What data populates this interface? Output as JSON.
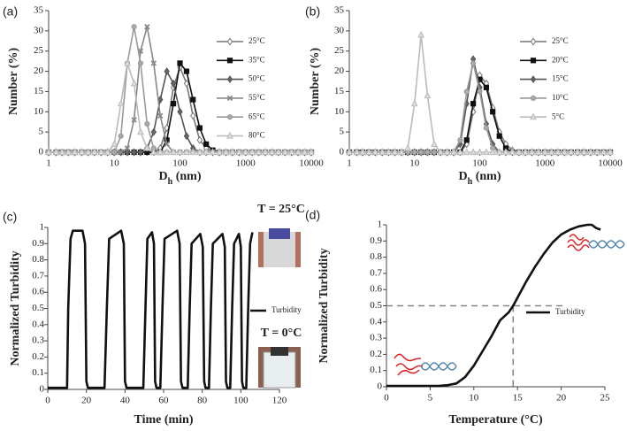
{
  "chart_data": [
    {
      "type": "line",
      "panel_label": "(a)",
      "ylabel": "Number (%)",
      "xlabel": [
        "D",
        "h",
        " (nm)"
      ],
      "xscale": "log",
      "xlim": [
        1,
        10000
      ],
      "xticks": [
        1,
        10,
        100,
        1000,
        10000
      ],
      "ylim": [
        0,
        35
      ],
      "yticks": [
        0,
        5,
        10,
        15,
        20,
        25,
        30,
        35
      ],
      "x": [
        1,
        1.3,
        1.6,
        2,
        2.5,
        3.2,
        4,
        5,
        6.3,
        7.9,
        10,
        12.6,
        15.8,
        20,
        25.1,
        31.6,
        39.8,
        50.1,
        63.1,
        79.4,
        100,
        126,
        158,
        200,
        251,
        316,
        398,
        501,
        631,
        794,
        1000,
        1259,
        1585,
        1995,
        2512,
        3162,
        3981,
        5012,
        6310,
        7943,
        10000
      ],
      "series": [
        {
          "name": "25°C",
          "color": "#777",
          "fill": "#fff",
          "marker": "diamond",
          "values": [
            0,
            0,
            0,
            0,
            0,
            0,
            0,
            0,
            0,
            0,
            0,
            0,
            0,
            0,
            0,
            0,
            0,
            1,
            6,
            16,
            21,
            17,
            9,
            3,
            1,
            0,
            0,
            0,
            0,
            0,
            0,
            0,
            0,
            0,
            0,
            0,
            0,
            0,
            0,
            0,
            0
          ]
        },
        {
          "name": "35°C",
          "color": "#111",
          "fill": "#111",
          "marker": "square",
          "values": [
            0,
            0,
            0,
            0,
            0,
            0,
            0,
            0,
            0,
            0,
            0,
            0,
            0,
            0,
            0,
            0,
            0,
            0,
            3,
            12,
            22,
            20,
            13,
            6,
            2,
            0.5,
            0,
            0,
            0,
            0,
            0,
            0,
            0,
            0,
            0,
            0,
            0,
            0,
            0,
            0,
            0
          ]
        },
        {
          "name": "50°C",
          "color": "#555",
          "fill": "#666",
          "marker": "diamond",
          "values": [
            0,
            0,
            0,
            0,
            0,
            0,
            0,
            0,
            0,
            0,
            0,
            0,
            0,
            0,
            0,
            1,
            5,
            13,
            20,
            17,
            10,
            4,
            1,
            0,
            0,
            0,
            0,
            0,
            0,
            0,
            0,
            0,
            0,
            0,
            0,
            0,
            0,
            0,
            0,
            0,
            0
          ]
        },
        {
          "name": "55°C",
          "color": "#888",
          "fill": "none",
          "marker": "x",
          "values": [
            0,
            0,
            0,
            0,
            0,
            0,
            0,
            0,
            0,
            0,
            0,
            0,
            1,
            8,
            25,
            31,
            22,
            9,
            2,
            0,
            0,
            0,
            0,
            0,
            0,
            0,
            0,
            0,
            0,
            0,
            0,
            0,
            0,
            0,
            0,
            0,
            0,
            0,
            0,
            0,
            0
          ]
        },
        {
          "name": "65°C",
          "color": "#999",
          "fill": "#aaa",
          "marker": "circle",
          "values": [
            0,
            0,
            0,
            0,
            0,
            0,
            0,
            0,
            0,
            0,
            0,
            4,
            22,
            31,
            22,
            7,
            1,
            0,
            0,
            0,
            0,
            0,
            0,
            0,
            0,
            0,
            0,
            0,
            0,
            0,
            0,
            0,
            0,
            0,
            0,
            0,
            0,
            0,
            0,
            0,
            0
          ]
        },
        {
          "name": "80°C",
          "color": "#bbb",
          "fill": "#ddd",
          "marker": "triangle",
          "values": [
            0,
            0,
            0,
            0,
            0,
            0,
            0,
            0,
            0,
            0,
            2,
            12,
            22,
            17,
            5,
            1,
            0,
            0,
            0,
            0,
            0,
            0,
            0,
            0,
            0,
            0,
            0,
            0,
            0,
            0,
            0,
            0,
            0,
            0,
            0,
            0,
            0,
            0,
            0,
            0,
            0
          ]
        }
      ]
    },
    {
      "type": "line",
      "panel_label": "(b)",
      "ylabel": "Number (%)",
      "xlabel": [
        "D",
        "h",
        " (nm)"
      ],
      "xscale": "log",
      "xlim": [
        1,
        10000
      ],
      "xticks": [
        1,
        10,
        100,
        1000,
        10000
      ],
      "ylim": [
        0,
        35
      ],
      "yticks": [
        0,
        5,
        10,
        15,
        20,
        25,
        30,
        35
      ],
      "x": [
        1,
        1.3,
        1.6,
        2,
        2.5,
        3.2,
        4,
        5,
        6.3,
        7.9,
        10,
        12.6,
        15.8,
        20,
        25.1,
        31.6,
        39.8,
        50.1,
        63.1,
        79.4,
        100,
        126,
        158,
        200,
        251,
        316,
        398,
        501,
        631,
        794,
        1000,
        1259,
        1585,
        1995,
        2512,
        3162,
        3981,
        5012,
        6310,
        7943,
        10000
      ],
      "series": [
        {
          "name": "25°C",
          "color": "#777",
          "fill": "#fff",
          "marker": "diamond",
          "values": [
            0,
            0,
            0,
            0,
            0,
            0,
            0,
            0,
            0,
            0,
            0,
            0,
            0,
            0,
            0,
            0,
            0,
            0,
            2,
            10,
            19,
            17,
            11,
            5,
            2,
            0.5,
            0,
            0,
            0,
            0,
            0,
            0,
            0,
            0,
            0,
            0,
            0,
            0,
            0,
            0,
            0
          ]
        },
        {
          "name": "20°C",
          "color": "#111",
          "fill": "#111",
          "marker": "square",
          "values": [
            0,
            0,
            0,
            0,
            0,
            0,
            0,
            0,
            0,
            0,
            0,
            0,
            0,
            0,
            0,
            0,
            0,
            0,
            3,
            12,
            18,
            16,
            10,
            4,
            1,
            0,
            0,
            0,
            0,
            0,
            0,
            0,
            0,
            0,
            0,
            0,
            0,
            0,
            0,
            0,
            0
          ]
        },
        {
          "name": "15°C",
          "color": "#555",
          "fill": "#666",
          "marker": "diamond",
          "values": [
            0,
            0,
            0,
            0,
            0,
            0,
            0,
            0,
            0,
            0,
            0,
            0,
            0,
            0,
            0,
            0,
            0,
            2,
            12,
            23,
            16,
            7,
            2,
            0,
            0,
            0,
            0,
            0,
            0,
            0,
            0,
            0,
            0,
            0,
            0,
            0,
            0,
            0,
            0,
            0,
            0
          ]
        },
        {
          "name": "10°C",
          "color": "#999",
          "fill": "#aaa",
          "marker": "circle",
          "values": [
            0,
            0,
            0,
            0,
            0,
            0,
            0,
            0,
            0,
            0,
            0,
            0,
            0,
            0,
            0,
            0,
            0,
            3,
            15,
            22,
            15,
            6,
            1,
            0,
            0,
            0,
            0,
            0,
            0,
            0,
            0,
            0,
            0,
            0,
            0,
            0,
            0,
            0,
            0,
            0,
            0
          ]
        },
        {
          "name": "5°C",
          "color": "#bbb",
          "fill": "#ddd",
          "marker": "triangle",
          "values": [
            0,
            0,
            0,
            0,
            0,
            0,
            0,
            0,
            0,
            1,
            12,
            29,
            14,
            2,
            0,
            0,
            0,
            0,
            0,
            0,
            0,
            0,
            0,
            0,
            0,
            0,
            0,
            0,
            0,
            0,
            0,
            0,
            0,
            0,
            0,
            0,
            0,
            0,
            0,
            0,
            0
          ]
        }
      ]
    },
    {
      "type": "line",
      "panel_label": "(c)",
      "ylabel": "Normalized Turbidity",
      "xlabel": [
        "Time (min)"
      ],
      "xlim": [
        0,
        120
      ],
      "xticks": [
        0,
        20,
        40,
        60,
        80,
        100,
        120
      ],
      "ylim": [
        0,
        1
      ],
      "yticks": [
        0,
        0.1,
        0.2,
        0.3,
        0.4,
        0.5,
        0.6,
        0.7,
        0.8,
        0.9,
        1
      ],
      "annotations": [
        "T = 25°C",
        "T = 0°C"
      ],
      "x": [
        0,
        10,
        10.6,
        11.8,
        13,
        18,
        19.3,
        20,
        20.8,
        29.4,
        30.6,
        31.8,
        38,
        39.4,
        40,
        40.8,
        49.5,
        50.6,
        51.6,
        54,
        55,
        55.6,
        56.3,
        58.3,
        59.4,
        60.5,
        67,
        68.3,
        69,
        69.8,
        72.5,
        73.5,
        74.5,
        79,
        80.3,
        81,
        81.7,
        83.5,
        84.5,
        85.5,
        90.5,
        91.7,
        92.3,
        93,
        94.5,
        95.5,
        96.5,
        99,
        100,
        100.6,
        101.3,
        102.8,
        103.8,
        104.8,
        106
      ],
      "series": [
        {
          "name": "Turbidity",
          "color": "#111",
          "values": [
            0.01,
            0.01,
            0.5,
            0.93,
            0.98,
            0.98,
            0.9,
            0.05,
            0.01,
            0.01,
            0.5,
            0.93,
            0.98,
            0.9,
            0.05,
            0.01,
            0.01,
            0.5,
            0.93,
            0.97,
            0.9,
            0.05,
            0.01,
            0.01,
            0.5,
            0.93,
            0.98,
            0.9,
            0.05,
            0.01,
            0.01,
            0.5,
            0.9,
            0.96,
            0.88,
            0.05,
            0.01,
            0.01,
            0.5,
            0.9,
            0.96,
            0.88,
            0.05,
            0.01,
            0.01,
            0.5,
            0.9,
            0.96,
            0.88,
            0.05,
            0.01,
            0.01,
            0.5,
            0.9,
            0.97
          ]
        }
      ]
    },
    {
      "type": "line",
      "panel_label": "(d)",
      "ylabel": "Normalized Turbidity",
      "xlabel": [
        "Temperature (°C)"
      ],
      "xlim": [
        0,
        25
      ],
      "xticks": [
        0,
        5,
        10,
        15,
        20,
        25
      ],
      "ylim": [
        0,
        1
      ],
      "yticks": [
        0,
        0.1,
        0.2,
        0.3,
        0.4,
        0.5,
        0.6,
        0.7,
        0.8,
        0.9,
        1
      ],
      "ref_x": 14.5,
      "ref_y": 0.5,
      "ref_end_x": 20.5,
      "x": [
        0,
        2,
        4,
        6,
        7,
        8,
        9,
        10,
        11,
        12,
        13,
        14,
        14.5,
        15,
        16,
        17,
        18,
        19,
        20,
        21,
        22,
        23,
        23.5,
        24,
        24.5
      ],
      "series": [
        {
          "name": "Turbidity",
          "color": "#111",
          "values": [
            0.005,
            0.005,
            0.005,
            0.005,
            0.01,
            0.02,
            0.06,
            0.13,
            0.22,
            0.31,
            0.41,
            0.46,
            0.5,
            0.55,
            0.65,
            0.74,
            0.82,
            0.89,
            0.94,
            0.97,
            0.99,
            1,
            1,
            0.98,
            0.97
          ]
        }
      ]
    }
  ]
}
